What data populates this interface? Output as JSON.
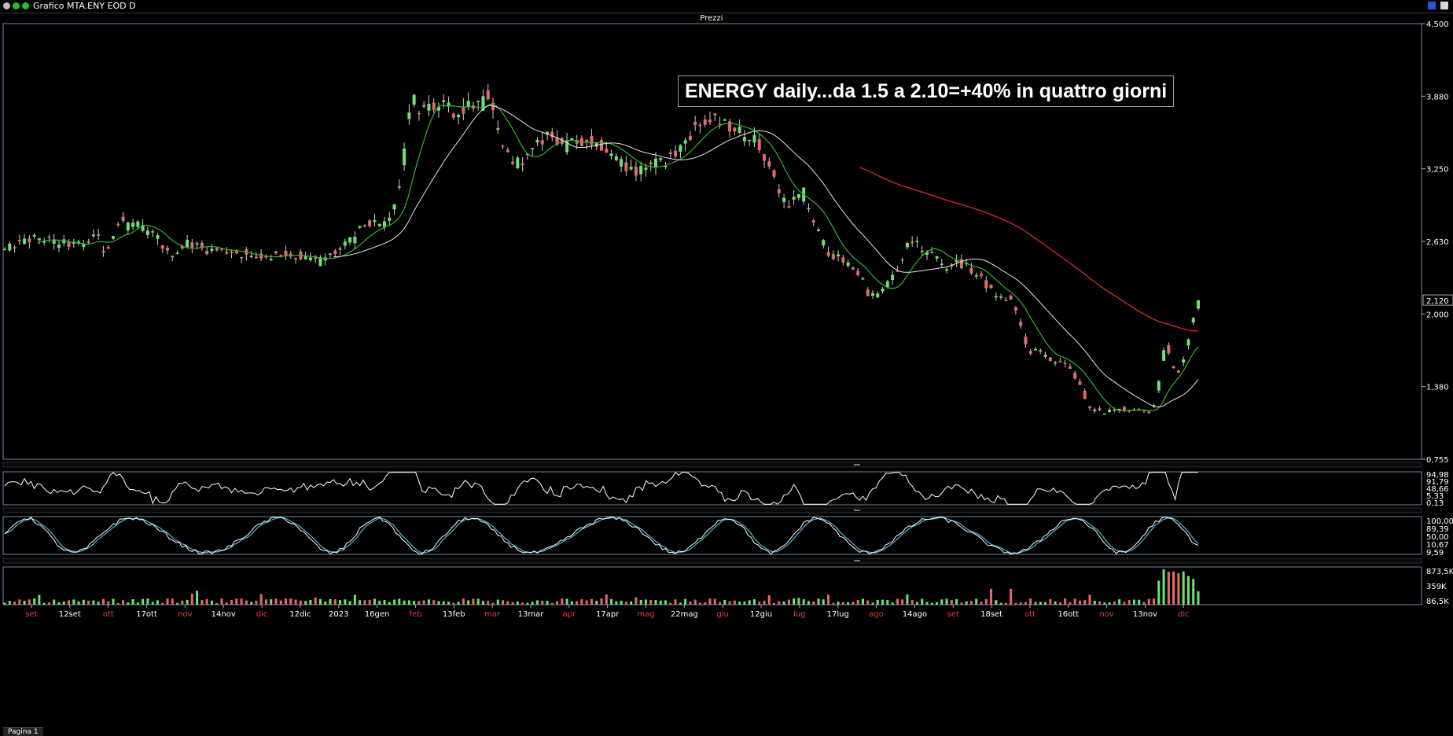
{
  "window": {
    "title": "Grafico MTA.ENY EOD D",
    "bottom_tab": "Pagina 1"
  },
  "colors": {
    "bg": "#000000",
    "up": "#6ee46e",
    "down": "#e56b6b",
    "ma_short": "#2fb52f",
    "ma_mid": "#e6e6e6",
    "ma_long": "#d62b2b",
    "stoch_k": "#ffffff",
    "stoch_d": "#4fb8d8",
    "panel_border": "#6e87a8"
  },
  "chart_data": {
    "type": "candlestick",
    "title": "Prezzi",
    "annotation": "ENERGY daily...da 1.5 a 2.10=+40% in quattro giorni",
    "price_axis": {
      "ticks": [
        "4,500",
        "3,880",
        "3,250",
        "2,630",
        "2,000",
        "1,380",
        "0,755"
      ],
      "ylim": [
        0.755,
        4.5
      ],
      "last_value": "2,120"
    },
    "x_labels": [
      {
        "t": "set",
        "c": "red"
      },
      {
        "t": "12set",
        "c": "white"
      },
      {
        "t": "ott",
        "c": "red"
      },
      {
        "t": "17ott",
        "c": "white"
      },
      {
        "t": "nov",
        "c": "red"
      },
      {
        "t": "14nov",
        "c": "white"
      },
      {
        "t": "dic",
        "c": "red"
      },
      {
        "t": "12dic",
        "c": "white"
      },
      {
        "t": "2023",
        "c": "white"
      },
      {
        "t": "16gen",
        "c": "white"
      },
      {
        "t": "feb",
        "c": "red"
      },
      {
        "t": "13feb",
        "c": "white"
      },
      {
        "t": "mar",
        "c": "red"
      },
      {
        "t": "13mar",
        "c": "white"
      },
      {
        "t": "apr",
        "c": "red"
      },
      {
        "t": "17apr",
        "c": "white"
      },
      {
        "t": "mag",
        "c": "red"
      },
      {
        "t": "22mag",
        "c": "white"
      },
      {
        "t": "giu",
        "c": "red"
      },
      {
        "t": "12giu",
        "c": "white"
      },
      {
        "t": "lug",
        "c": "red"
      },
      {
        "t": "17lug",
        "c": "white"
      },
      {
        "t": "ago",
        "c": "red"
      },
      {
        "t": "14ago",
        "c": "white"
      },
      {
        "t": "set",
        "c": "red"
      },
      {
        "t": "18set",
        "c": "white"
      },
      {
        "t": "ott",
        "c": "red"
      },
      {
        "t": "16ott",
        "c": "white"
      },
      {
        "t": "nov",
        "c": "red"
      },
      {
        "t": "13nov",
        "c": "white"
      },
      {
        "t": "dic",
        "c": "red"
      }
    ],
    "close_anchors": [
      [
        0,
        2.55
      ],
      [
        10,
        2.62
      ],
      [
        20,
        2.66
      ],
      [
        30,
        2.62
      ],
      [
        40,
        2.6
      ],
      [
        50,
        2.6
      ],
      [
        55,
        2.72
      ],
      [
        60,
        2.55
      ],
      [
        64,
        2.62
      ],
      [
        70,
        2.8
      ],
      [
        80,
        2.77
      ],
      [
        88,
        2.7
      ],
      [
        92,
        2.68
      ],
      [
        100,
        2.5
      ],
      [
        108,
        2.58
      ],
      [
        112,
        2.63
      ],
      [
        120,
        2.56
      ],
      [
        130,
        2.55
      ],
      [
        140,
        2.54
      ],
      [
        150,
        2.48
      ],
      [
        160,
        2.5
      ],
      [
        170,
        2.52
      ],
      [
        180,
        2.49
      ],
      [
        190,
        2.46
      ],
      [
        200,
        2.52
      ],
      [
        206,
        2.58
      ],
      [
        212,
        2.66
      ],
      [
        220,
        2.78
      ],
      [
        230,
        2.76
      ],
      [
        236,
        2.86
      ],
      [
        242,
        3.25
      ],
      [
        247,
        3.9
      ],
      [
        252,
        3.75
      ],
      [
        260,
        3.78
      ],
      [
        268,
        3.85
      ],
      [
        275,
        3.7
      ],
      [
        282,
        3.82
      ],
      [
        290,
        3.8
      ],
      [
        294,
        3.88
      ],
      [
        298,
        3.65
      ],
      [
        302,
        3.45
      ],
      [
        310,
        3.3
      ],
      [
        318,
        3.35
      ],
      [
        324,
        3.45
      ],
      [
        330,
        3.55
      ],
      [
        336,
        3.5
      ],
      [
        342,
        3.45
      ],
      [
        352,
        3.5
      ],
      [
        360,
        3.47
      ],
      [
        368,
        3.42
      ],
      [
        376,
        3.3
      ],
      [
        384,
        3.22
      ],
      [
        392,
        3.3
      ],
      [
        400,
        3.3
      ],
      [
        408,
        3.38
      ],
      [
        414,
        3.5
      ],
      [
        420,
        3.6
      ],
      [
        426,
        3.65
      ],
      [
        432,
        3.66
      ],
      [
        440,
        3.62
      ],
      [
        448,
        3.57
      ],
      [
        454,
        3.55
      ],
      [
        460,
        3.4
      ],
      [
        466,
        3.25
      ],
      [
        470,
        3.08
      ],
      [
        476,
        2.95
      ],
      [
        482,
        3.0
      ],
      [
        486,
        3.05
      ],
      [
        492,
        2.8
      ],
      [
        500,
        2.55
      ],
      [
        508,
        2.47
      ],
      [
        516,
        2.4
      ],
      [
        522,
        2.3
      ],
      [
        526,
        2.15
      ],
      [
        532,
        2.18
      ],
      [
        538,
        2.28
      ],
      [
        544,
        2.4
      ],
      [
        548,
        2.58
      ],
      [
        554,
        2.6
      ],
      [
        560,
        2.56
      ],
      [
        568,
        2.48
      ],
      [
        572,
        2.4
      ],
      [
        580,
        2.45
      ],
      [
        586,
        2.4
      ],
      [
        594,
        2.3
      ],
      [
        600,
        2.2
      ],
      [
        606,
        2.14
      ],
      [
        612,
        2.12
      ],
      [
        618,
        1.9
      ],
      [
        622,
        1.68
      ],
      [
        630,
        1.68
      ],
      [
        638,
        1.6
      ],
      [
        646,
        1.55
      ],
      [
        654,
        1.4
      ],
      [
        660,
        1.18
      ],
      [
        668,
        1.16
      ],
      [
        676,
        1.18
      ],
      [
        684,
        1.18
      ],
      [
        690,
        1.17
      ],
      [
        696,
        1.15
      ],
      [
        700,
        1.25
      ],
      [
        706,
        1.78
      ],
      [
        710,
        1.55
      ],
      [
        714,
        1.5
      ],
      [
        718,
        1.65
      ],
      [
        722,
        1.92
      ],
      [
        726,
        2.12
      ]
    ],
    "rsi_panel": {
      "ticks": [
        "94,98",
        "91,79",
        "48,66",
        "5,33",
        "0,13"
      ],
      "ylim": [
        0,
        100
      ]
    },
    "stoch_panel": {
      "ticks": [
        "100,00",
        "89,39",
        "50,00",
        "10,67",
        "9,59"
      ],
      "ylim": [
        0,
        100
      ]
    },
    "volume_panel": {
      "ticks": [
        "873,5K",
        "359K",
        "86,5K"
      ]
    }
  }
}
